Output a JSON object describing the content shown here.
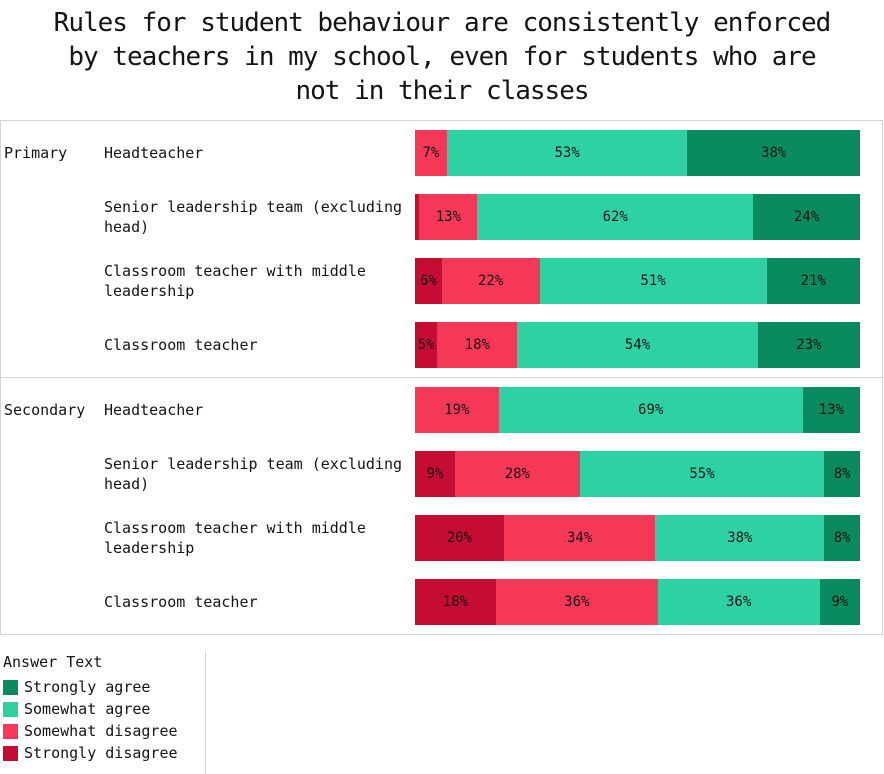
{
  "title": "Rules for student behaviour are consistently enforced by teachers in my school, even for students who are not in their classes",
  "title_lines": [
    "Rules for student behaviour are consistently enforced",
    "by teachers in my school, even for students who are",
    "not in their classes"
  ],
  "legend": {
    "title": "Answer Text",
    "items": [
      {
        "label": "Strongly agree",
        "color": "#0a8a5f"
      },
      {
        "label": "Somewhat agree",
        "color": "#2ed1a2"
      },
      {
        "label": "Somewhat disagree",
        "color": "#f53858"
      },
      {
        "label": "Strongly disagree",
        "color": "#c50d33"
      }
    ]
  },
  "chart_data": {
    "type": "bar",
    "orientation": "horizontal",
    "stacked": true,
    "unit": "%",
    "xlim": [
      0,
      100
    ],
    "legend_title": "Answer Text",
    "legend_position": "bottom-left",
    "grid": false,
    "categories_order": [
      "Strongly disagree",
      "Somewhat disagree",
      "Somewhat agree",
      "Strongly agree"
    ],
    "groups": [
      {
        "group": "Primary",
        "rows": [
          {
            "label": "Headteacher",
            "segments": [
              {
                "name": "Somewhat disagree",
                "value": 7
              },
              {
                "name": "Somewhat agree",
                "value": 53
              },
              {
                "name": "Strongly agree",
                "value": 38
              }
            ]
          },
          {
            "label": "Senior leadership team (excluding head)",
            "segments": [
              {
                "name": "Strongly disagree",
                "value": 1,
                "show_label": false
              },
              {
                "name": "Somewhat disagree",
                "value": 13
              },
              {
                "name": "Somewhat agree",
                "value": 62
              },
              {
                "name": "Strongly agree",
                "value": 24
              }
            ]
          },
          {
            "label": "Classroom teacher with middle leadership",
            "segments": [
              {
                "name": "Strongly disagree",
                "value": 6
              },
              {
                "name": "Somewhat disagree",
                "value": 22
              },
              {
                "name": "Somewhat agree",
                "value": 51
              },
              {
                "name": "Strongly agree",
                "value": 21
              }
            ]
          },
          {
            "label": "Classroom teacher",
            "segments": [
              {
                "name": "Strongly disagree",
                "value": 5
              },
              {
                "name": "Somewhat disagree",
                "value": 18
              },
              {
                "name": "Somewhat agree",
                "value": 54
              },
              {
                "name": "Strongly agree",
                "value": 23
              }
            ]
          }
        ]
      },
      {
        "group": "Secondary",
        "rows": [
          {
            "label": "Headteacher",
            "segments": [
              {
                "name": "Somewhat disagree",
                "value": 19
              },
              {
                "name": "Somewhat agree",
                "value": 69
              },
              {
                "name": "Strongly agree",
                "value": 13
              }
            ]
          },
          {
            "label": "Senior leadership team (excluding head)",
            "segments": [
              {
                "name": "Strongly disagree",
                "value": 9
              },
              {
                "name": "Somewhat disagree",
                "value": 28
              },
              {
                "name": "Somewhat agree",
                "value": 55
              },
              {
                "name": "Strongly agree",
                "value": 8
              }
            ]
          },
          {
            "label": "Classroom teacher with middle leadership",
            "segments": [
              {
                "name": "Strongly disagree",
                "value": 20
              },
              {
                "name": "Somewhat disagree",
                "value": 34
              },
              {
                "name": "Somewhat agree",
                "value": 38
              },
              {
                "name": "Strongly agree",
                "value": 8
              }
            ]
          },
          {
            "label": "Classroom teacher",
            "segments": [
              {
                "name": "Strongly disagree",
                "value": 18
              },
              {
                "name": "Somewhat disagree",
                "value": 36
              },
              {
                "name": "Somewhat agree",
                "value": 36
              },
              {
                "name": "Strongly agree",
                "value": 9
              }
            ]
          }
        ]
      }
    ]
  }
}
